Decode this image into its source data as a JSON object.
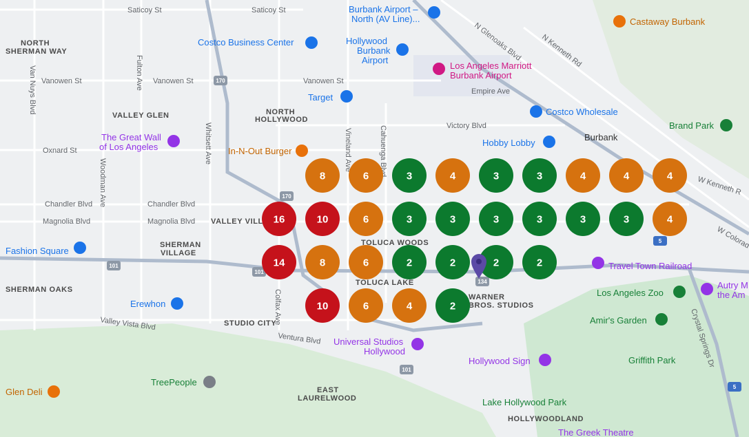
{
  "labels": [
    "Saticoy St",
    "Saticoy St",
    "Burbank Airport –",
    "North (AV Line)...",
    "NORTH",
    "SHERMAN WAY",
    "Costco Business Center",
    "Hollywood",
    "Burbank",
    "Airport",
    "Los Angeles Marriott",
    "Burbank Airport",
    "Castaway Burbank",
    "N Glenoaks Blvd",
    "N Kenneth Rd",
    "Vanowen St",
    "Vanowen St",
    "Vanowen St",
    "Empire Ave",
    "Target",
    "VALLEY GLEN",
    "NORTH",
    "HOLLYWOOD",
    "Costco Wholesale",
    "Victory Blvd",
    "Burbank",
    "Brand Park",
    "The Great Wall",
    "of Los Angeles",
    "Oxnard St",
    "In-N-Out Burger",
    "Hobby Lobby",
    "Chandler Blvd",
    "Chandler Blvd",
    "Magnolia Blvd",
    "Magnolia Blvd",
    "VALLEY VILL",
    "Fashion Square",
    "SHERMAN",
    "VILLAGE",
    "TOLUCA WOODS",
    "TOLUCA LAKE",
    "SHERMAN OAKS",
    "Erewhon",
    "Valley Vista Blvd",
    "STUDIO CITY",
    "Ventura Blvd",
    "WARNER",
    "BROS. STUDIOS",
    "Travel Town Railroad",
    "Los Angeles Zoo",
    "Autry M",
    "the Am",
    "Amir's Garden",
    "Universal Studios",
    "Hollywood",
    "Hollywood Sign",
    "Griffith Park",
    "TreePeople",
    "Glen Deli",
    "EAST",
    "LAURELWOOD",
    "Lake Hollywood Park",
    "HOLLYWOODLAND",
    "The Greek Theatre",
    "Van Nuys Blvd",
    "Fulton Ave",
    "Woodman Ave",
    "Whitsett Ave",
    "Vineland Ave",
    "Cahuenga Blvd",
    "Colfax Ave",
    "Crystal Springs Dr",
    "W Kenneth R",
    "W Colorad"
  ],
  "shields": [
    "170",
    "170",
    "101",
    "101",
    "101",
    "134",
    "5",
    "5"
  ],
  "rank_grid": {
    "rows": [
      [
        null,
        {
          "value": 8,
          "color": "#d6720f"
        },
        {
          "value": 6,
          "color": "#d6720f"
        },
        {
          "value": 3,
          "color": "#0c7a2e"
        },
        {
          "value": 4,
          "color": "#d6720f"
        },
        {
          "value": 3,
          "color": "#0c7a2e"
        },
        {
          "value": 3,
          "color": "#0c7a2e"
        },
        {
          "value": 4,
          "color": "#d6720f"
        },
        {
          "value": 4,
          "color": "#d6720f"
        },
        {
          "value": 4,
          "color": "#d6720f"
        }
      ],
      [
        {
          "value": 16,
          "color": "#c5121b"
        },
        {
          "value": 10,
          "color": "#c5121b"
        },
        {
          "value": 6,
          "color": "#d6720f"
        },
        {
          "value": 3,
          "color": "#0c7a2e"
        },
        {
          "value": 3,
          "color": "#0c7a2e"
        },
        {
          "value": 3,
          "color": "#0c7a2e"
        },
        {
          "value": 3,
          "color": "#0c7a2e"
        },
        {
          "value": 3,
          "color": "#0c7a2e"
        },
        {
          "value": 3,
          "color": "#0c7a2e"
        },
        {
          "value": 4,
          "color": "#d6720f"
        }
      ],
      [
        {
          "value": 14,
          "color": "#c5121b"
        },
        {
          "value": 8,
          "color": "#d6720f"
        },
        {
          "value": 6,
          "color": "#d6720f"
        },
        {
          "value": 2,
          "color": "#0c7a2e"
        },
        {
          "value": 2,
          "color": "#0c7a2e"
        },
        {
          "value": 2,
          "color": "#0c7a2e"
        },
        {
          "value": 2,
          "color": "#0c7a2e"
        },
        null,
        null,
        null
      ],
      [
        null,
        {
          "value": 10,
          "color": "#c5121b"
        },
        {
          "value": 6,
          "color": "#d6720f"
        },
        {
          "value": 4,
          "color": "#d6720f"
        },
        {
          "value": 2,
          "color": "#0c7a2e"
        },
        null,
        null,
        null,
        null,
        null
      ]
    ]
  }
}
